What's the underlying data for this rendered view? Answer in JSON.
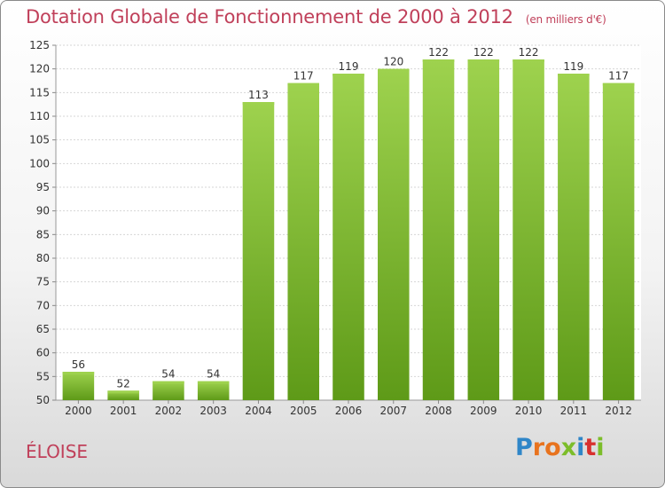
{
  "chart_data": {
    "type": "bar",
    "title": "Dotation Globale de Fonctionnement de 2000 à 2012",
    "unit_note": "(en milliers d'€)",
    "categories": [
      "2000",
      "2001",
      "2002",
      "2003",
      "2004",
      "2005",
      "2006",
      "2007",
      "2008",
      "2009",
      "2010",
      "2011",
      "2012"
    ],
    "values": [
      56,
      52,
      54,
      54,
      113,
      117,
      119,
      120,
      122,
      122,
      122,
      119,
      117
    ],
    "ylim": [
      50,
      125
    ],
    "yticks": [
      50,
      55,
      60,
      65,
      70,
      75,
      80,
      85,
      90,
      95,
      100,
      105,
      110,
      115,
      120,
      125
    ],
    "grid": true,
    "bar_color": "#7cc232",
    "bar_color_light": "#9ed24e",
    "bar_color_dark": "#5e9a18"
  },
  "commune": "ÉLOISE",
  "logo": {
    "letters": [
      {
        "char": "P",
        "color": "#2f86c8"
      },
      {
        "char": "r",
        "color": "#e8731e"
      },
      {
        "char": "o",
        "color": "#e8731e"
      },
      {
        "char": "x",
        "color": "#7cbd2a"
      },
      {
        "char": "i",
        "color": "#2f86c8"
      },
      {
        "char": "t",
        "color": "#d8312f"
      },
      {
        "char": "i",
        "color": "#7cbd2a"
      }
    ]
  }
}
